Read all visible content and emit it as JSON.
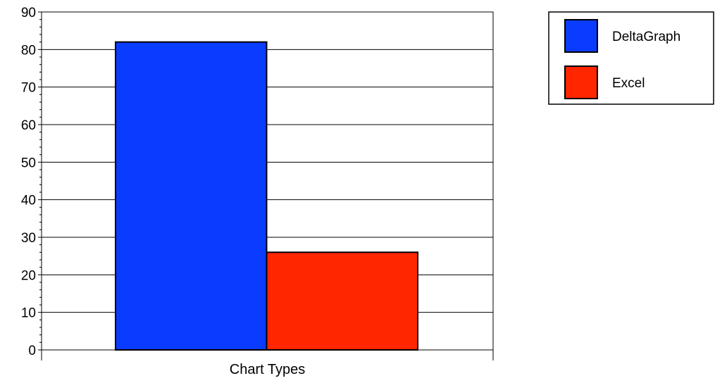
{
  "chart_data": {
    "type": "bar",
    "categories": [
      "Chart Types"
    ],
    "series": [
      {
        "name": "DeltaGraph",
        "values": [
          82
        ],
        "color": "#0a3cff"
      },
      {
        "name": "Excel",
        "values": [
          26
        ],
        "color": "#ff2600"
      }
    ],
    "xlabel": "Chart Types",
    "ylabel": "",
    "ylim": [
      0,
      90
    ],
    "yticks": [
      0,
      10,
      20,
      30,
      40,
      50,
      60,
      70,
      80,
      90
    ],
    "minor_ticks_per_major": 5,
    "grid": true,
    "legend_position": "top-right"
  }
}
